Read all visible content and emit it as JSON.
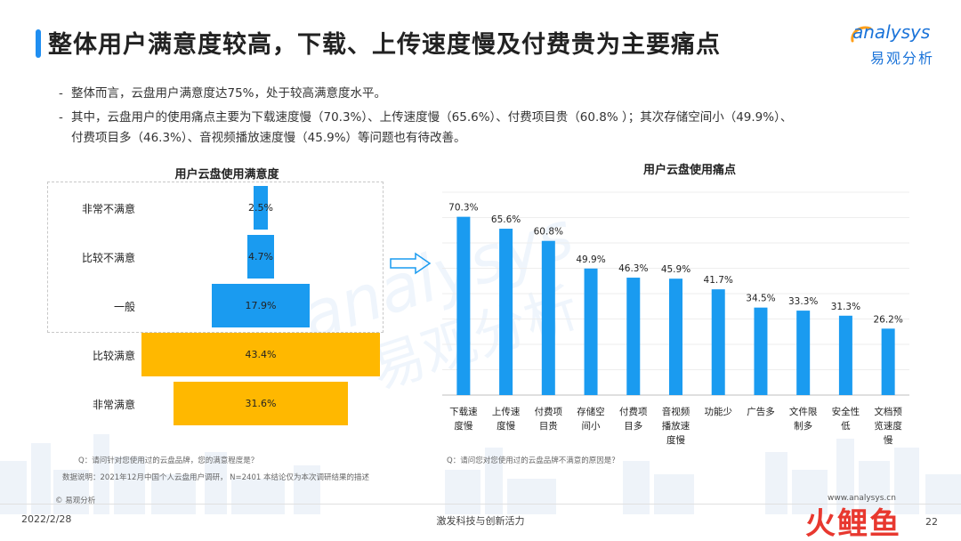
{
  "header": {
    "title": "整体用户满意度较高，下载、上传速度慢及付费贵为主要痛点",
    "logo_en": "analysys",
    "logo_cn": "易观分析"
  },
  "bullets": [
    "整体而言，云盘用户满意度达75%，处于较高满意度水平。",
    "其中，云盘用户的使用痛点主要为下载速度慢（70.3%）、上传速度慢（65.6%）、付费项目贵（60.8% ）；其次存储空间小（49.9%）、",
    "付费项目多（46.3%）、音视频播放速度慢（45.9%）等问题也有待改善。"
  ],
  "watermark": {
    "en": "analysys",
    "cn": "易观分析"
  },
  "chart_data": [
    {
      "type": "bar",
      "orientation": "horizontal-funnel",
      "title": "用户云盘使用满意度",
      "categories": [
        "非常不满意",
        "比较不满意",
        "一般",
        "比较满意",
        "非常满意"
      ],
      "values": [
        2.5,
        4.7,
        17.9,
        43.4,
        31.6
      ],
      "value_labels": [
        "2.5%",
        "4.7%",
        "17.9%",
        "43.4%",
        "31.6%"
      ],
      "colors": [
        "#1a9bf0",
        "#1a9bf0",
        "#1a9bf0",
        "#ffb800",
        "#ffb800"
      ],
      "note": "Q：请问针对您使用过的云盘品牌，您的满意程度是？"
    },
    {
      "type": "bar",
      "title": "用户云盘使用痛点",
      "categories": [
        "下载速\n度慢",
        "上传速\n度慢",
        "付费项\n目贵",
        "存储空\n间小",
        "付费项\n目多",
        "音视频\n播放速\n度慢",
        "功能少",
        "广告多",
        "文件限\n制多",
        "安全性\n低",
        "文档预\n览速度\n慢"
      ],
      "values": [
        70.3,
        65.6,
        60.8,
        49.9,
        46.3,
        45.9,
        41.7,
        34.5,
        33.3,
        31.3,
        26.2
      ],
      "value_labels": [
        "70.3%",
        "65.6%",
        "60.8%",
        "49.9%",
        "46.3%",
        "45.9%",
        "41.7%",
        "34.5%",
        "33.3%",
        "31.3%",
        "26.2%"
      ],
      "ylim": [
        0,
        80
      ],
      "grid": true,
      "color": "#1a9bf0",
      "note": "Q：请问您对您使用过的云盘品牌不满意的原因是？"
    }
  ],
  "notes": {
    "data_note": "数据说明：2021年12月中国个人云盘用户调研， N=2401   本结论仅为本次调研结果的描述",
    "copyright": "© 易观分析",
    "website": "www.analysys.cn"
  },
  "footer": {
    "date": "2022/2/28",
    "slogan": "激发科技与创新活力",
    "page": "22",
    "corner_logo_text": "火鲤鱼"
  },
  "colors": {
    "brand_blue": "#1a73d9",
    "bar_blue": "#1a9bf0",
    "funnel_yellow": "#ffb800",
    "title_accent": "#1f8ef1"
  }
}
